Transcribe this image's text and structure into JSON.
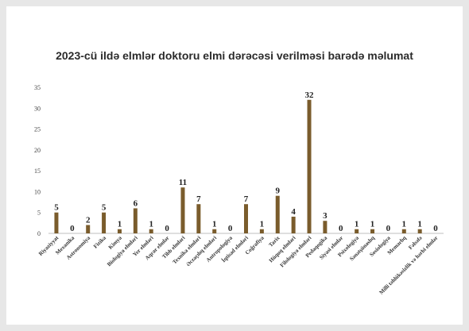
{
  "chart_data": {
    "type": "bar",
    "title": "2023-cü ildə elmlər doktoru elmi dərəcəsi verilməsi barədə məlumat",
    "categories": [
      "Riyaziyyat",
      "Mexanika",
      "Astronomiya",
      "Fizika",
      "Kimya",
      "Biologiya elmləri",
      "Yer elmləri",
      "Aqrar elmlər",
      "Tibb elmləri",
      "Texnika elmləri",
      "Əczaçılıq elmləri",
      "Antropologiya",
      "İqtisad elmləri",
      "Coğrafiya",
      "Tarix",
      "Hüquq elmləri",
      "Filologiya elmləri",
      "Pedaqogika",
      "Siyasi elmlər",
      "Psixologiya",
      "Sənətşünaslıq",
      "Sosiologiya",
      "Memarlıq",
      "Fəlsəfə",
      "Milli təhlükəsizlik və hərbi elmlər"
    ],
    "values": [
      5,
      0,
      2,
      5,
      1,
      6,
      1,
      0,
      11,
      7,
      1,
      0,
      7,
      1,
      9,
      4,
      32,
      3,
      0,
      1,
      1,
      0,
      1,
      1,
      0
    ],
    "yticks": [
      0,
      5,
      10,
      15,
      20,
      25,
      30,
      35
    ],
    "ylim": [
      0,
      35
    ],
    "bar_color": "#7a5c2c",
    "xlabel": "",
    "ylabel": "",
    "grid": false,
    "legend": "none"
  }
}
